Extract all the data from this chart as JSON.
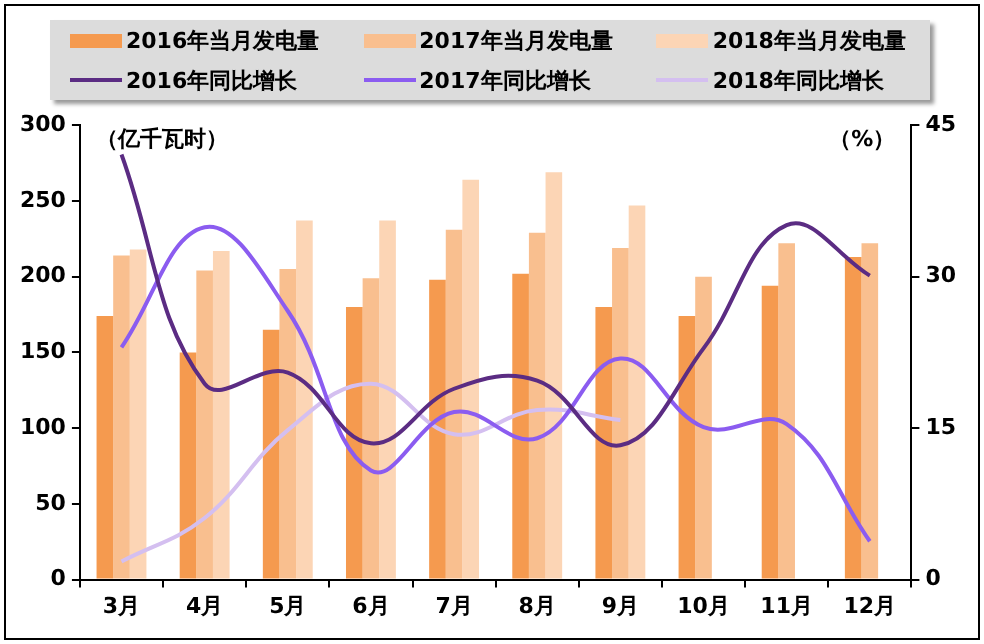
{
  "chart_data": {
    "type": "bar",
    "ylabel": "（亿千瓦时）",
    "y2label": "（%）",
    "categories": [
      "3月",
      "4月",
      "5月",
      "6月",
      "7月",
      "8月",
      "9月",
      "10月",
      "11月",
      "12月"
    ],
    "series": [
      {
        "name": "2016年当月发电量",
        "color": "#f59a4f",
        "values": [
          174,
          150,
          165,
          180,
          198,
          202,
          180,
          174,
          194,
          213
        ]
      },
      {
        "name": "2017年当月发电量",
        "color": "#f9bf8f",
        "values": [
          214,
          204,
          205,
          199,
          231,
          229,
          219,
          200,
          222,
          222
        ]
      },
      {
        "name": "2018年当月发电量",
        "color": "#fcd5b5",
        "values": [
          218,
          217,
          237,
          237,
          264,
          269,
          247,
          null,
          null,
          null
        ]
      },
      {
        "name": "2016年同比增长",
        "type": "line",
        "axis": "y2",
        "color": "#5b2c83",
        "values": [
          42.1,
          19.4,
          20.5,
          13.5,
          18.9,
          19.7,
          13.3,
          22.9,
          35.1,
          30.1
        ]
      },
      {
        "name": "2017年同比增长",
        "type": "line",
        "axis": "y2",
        "color": "#8b5cf0",
        "values": [
          23.0,
          34.9,
          26.6,
          10.8,
          16.6,
          14.0,
          21.9,
          15.1,
          15.4,
          3.8
        ]
      },
      {
        "name": "2018年同比增长",
        "type": "line",
        "axis": "y2",
        "color": "#d4bff0",
        "values": [
          1.8,
          6.1,
          14.8,
          19.4,
          14.4,
          16.8,
          15.8,
          null,
          null,
          null
        ]
      }
    ],
    "ylim": [
      0,
      300
    ],
    "yticks": [
      0,
      50,
      100,
      150,
      200,
      250,
      300
    ],
    "y2lim": [
      0,
      45
    ],
    "y2ticks": [
      0,
      15,
      30,
      45
    ],
    "grid": false,
    "legend": "top",
    "marker": "none",
    "line_style": "solid"
  }
}
